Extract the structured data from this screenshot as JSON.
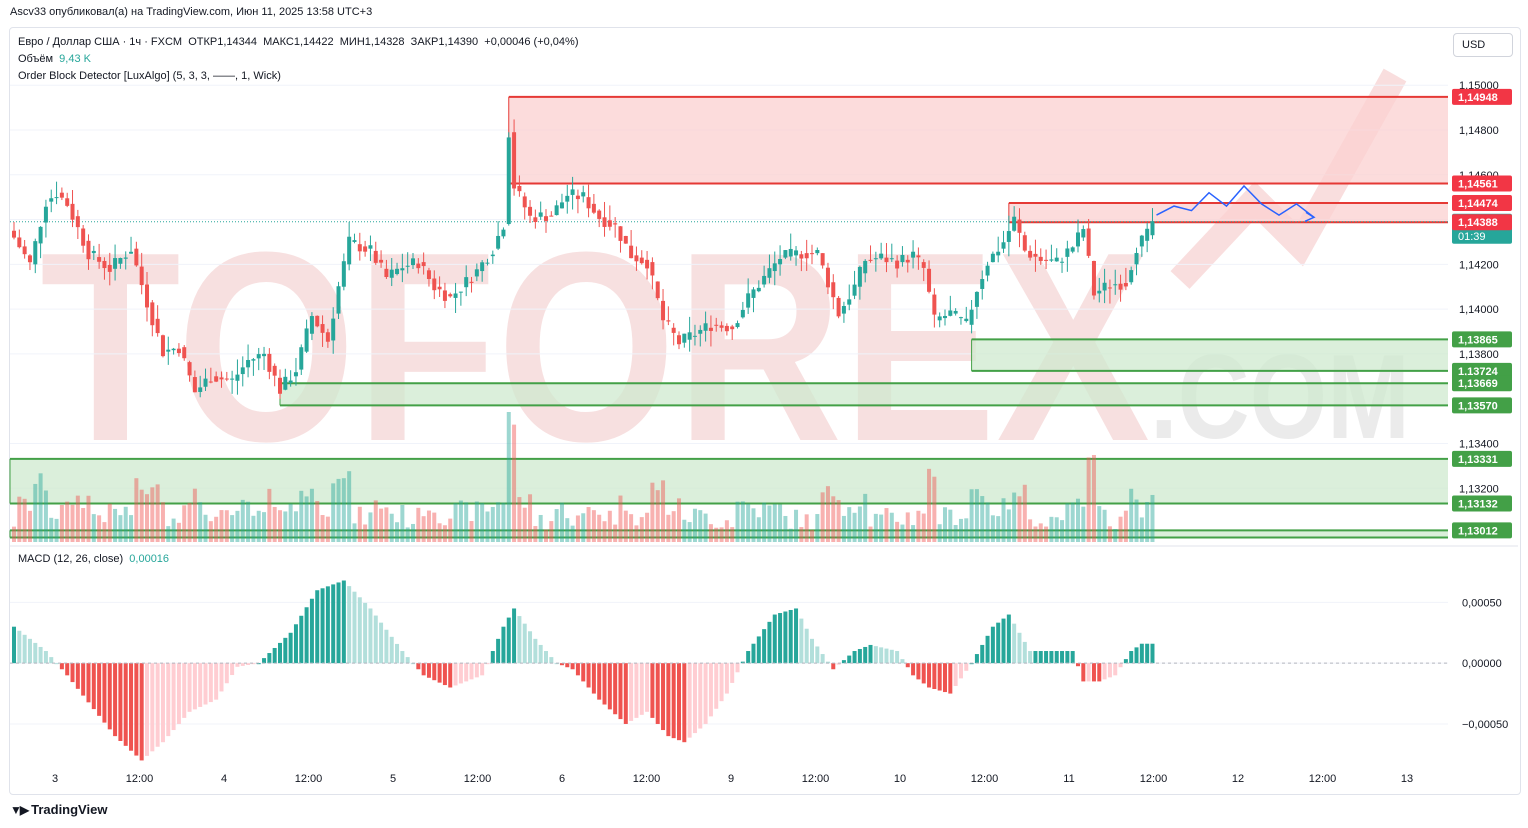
{
  "header": {
    "published_by": "Ascv33 опубликовал(а) на TradingView.com, Июн 11, 2025 13:58 UTC+3"
  },
  "legend": {
    "symbol_line": "Евро / Доллар США · 1ч · FXCM",
    "open": "ОТКР1,14344",
    "high": "МАКС1,14422",
    "low": "МИН1,14328",
    "close": "ЗАКР1,14390",
    "change": "+0,00046 (+0,04%)",
    "volume_label": "Объём",
    "volume_value": "9,43 K",
    "indicator": "Order Block Detector [LuxAlgo] (5, 3, 3, ——, 1, Wick)",
    "macd_label": "MACD (12, 26, close)",
    "macd_value": "0,00016"
  },
  "currency_button": "USD",
  "watermark": {
    "brand": "TOFOREX",
    "suffix": ".COM"
  },
  "footer": {
    "brand": "TradingView"
  },
  "colors": {
    "up": "#26a69a",
    "down": "#ef5350",
    "bear_zone_fill": "#fbd0d0",
    "bull_zone_fill": "#cfe9cf",
    "zone_green_line": "#43a047",
    "zone_red_line": "#e53935",
    "projection": "#2962ff"
  },
  "chart_data": {
    "type": "candlestick",
    "symbol": "EURUSD",
    "timeframe": "1h",
    "x_tick_labels": [
      "3",
      "12:00",
      "4",
      "12:00",
      "5",
      "12:00",
      "6",
      "12:00",
      "9",
      "12:00",
      "10",
      "12:00",
      "11",
      "12:00",
      "12",
      "12:00",
      "13"
    ],
    "price_axis": {
      "range": [
        1.1296,
        1.1505
      ],
      "ticks": [
        "1,15000",
        "1,14800",
        "1,14600",
        "1,14400",
        "1,14200",
        "1,14000",
        "1,13800",
        "1,13400",
        "1,13200"
      ],
      "tick_values": [
        1.15,
        1.148,
        1.146,
        1.144,
        1.142,
        1.14,
        1.138,
        1.134,
        1.132
      ]
    },
    "price_markers": [
      {
        "label": "1,14948",
        "value": 1.14948,
        "kind": "red"
      },
      {
        "label": "1,14561",
        "value": 1.14561,
        "kind": "red"
      },
      {
        "label": "1,14474",
        "value": 1.14474,
        "kind": "red"
      },
      {
        "label": "1,14390",
        "value": 1.1439,
        "kind": "current",
        "sub": "01:39"
      },
      {
        "label": "1,14388",
        "value": 1.14388,
        "kind": "red"
      },
      {
        "label": "1,13865",
        "value": 1.13865,
        "kind": "green"
      },
      {
        "label": "1,13724",
        "value": 1.13724,
        "kind": "green"
      },
      {
        "label": "1,13669",
        "value": 1.13669,
        "kind": "green"
      },
      {
        "label": "1,13570",
        "value": 1.1357,
        "kind": "green"
      },
      {
        "label": "1,13331",
        "value": 1.13331,
        "kind": "green"
      },
      {
        "label": "1,13132",
        "value": 1.13132,
        "kind": "green"
      },
      {
        "label": "1,13012",
        "value": 1.13012,
        "kind": "green"
      }
    ],
    "zones": [
      {
        "kind": "bearish",
        "from_bar": 93,
        "top": 1.14948,
        "bottom": 1.14561
      },
      {
        "kind": "bearish",
        "from_bar": 187,
        "top": 1.14474,
        "bottom": 1.14388
      },
      {
        "kind": "bullish",
        "from_bar": 180,
        "top": 1.13865,
        "bottom": 1.13724
      },
      {
        "kind": "bullish",
        "from_bar": 50,
        "top": 1.13669,
        "bottom": 1.1357
      },
      {
        "kind": "bullish",
        "from_bar": 0,
        "top": 1.13331,
        "bottom": 1.13132
      },
      {
        "kind": "bullish",
        "from_bar": 0,
        "top": 1.13012,
        "bottom": 1.1298
      }
    ],
    "current_price": 1.1439,
    "projection": [
      1.1442,
      1.1446,
      1.1444,
      1.1452,
      1.1446,
      1.1455,
      1.1447,
      1.1442,
      1.1447,
      1.1441
    ],
    "anchors": [
      [
        0,
        1.1432
      ],
      [
        3,
        1.142
      ],
      [
        6,
        1.1448
      ],
      [
        8,
        1.1452
      ],
      [
        10,
        1.1447
      ],
      [
        14,
        1.1425
      ],
      [
        18,
        1.1418
      ],
      [
        22,
        1.1427
      ],
      [
        25,
        1.1403
      ],
      [
        28,
        1.1381
      ],
      [
        31,
        1.1383
      ],
      [
        34,
        1.1363
      ],
      [
        37,
        1.137
      ],
      [
        41,
        1.1368
      ],
      [
        44,
        1.1377
      ],
      [
        47,
        1.138
      ],
      [
        50,
        1.1364
      ],
      [
        53,
        1.1373
      ],
      [
        56,
        1.1397
      ],
      [
        59,
        1.1386
      ],
      [
        61,
        1.141
      ],
      [
        63,
        1.143
      ],
      [
        67,
        1.1426
      ],
      [
        70,
        1.1414
      ],
      [
        73,
        1.1419
      ],
      [
        76,
        1.1421
      ],
      [
        79,
        1.141
      ],
      [
        82,
        1.1405
      ],
      [
        87,
        1.1417
      ],
      [
        90,
        1.1427
      ],
      [
        92,
        1.1438
      ],
      [
        93,
        1.1479
      ],
      [
        94,
        1.1455
      ],
      [
        97,
        1.1441
      ],
      [
        101,
        1.1442
      ],
      [
        104,
        1.1451
      ],
      [
        107,
        1.145
      ],
      [
        110,
        1.1441
      ],
      [
        113,
        1.1437
      ],
      [
        116,
        1.1424
      ],
      [
        119,
        1.1421
      ],
      [
        122,
        1.1395
      ],
      [
        125,
        1.1385
      ],
      [
        128,
        1.1389
      ],
      [
        131,
        1.1393
      ],
      [
        135,
        1.1392
      ],
      [
        138,
        1.1405
      ],
      [
        141,
        1.1414
      ],
      [
        144,
        1.1423
      ],
      [
        148,
        1.1425
      ],
      [
        151,
        1.1425
      ],
      [
        153,
        1.1412
      ],
      [
        155,
        1.1398
      ],
      [
        158,
        1.141
      ],
      [
        160,
        1.1422
      ],
      [
        163,
        1.1423
      ],
      [
        166,
        1.1421
      ],
      [
        169,
        1.1424
      ],
      [
        171,
        1.1418
      ],
      [
        173,
        1.1395
      ],
      [
        176,
        1.1398
      ],
      [
        179,
        1.1393
      ],
      [
        181,
        1.1409
      ],
      [
        183,
        1.1421
      ],
      [
        186,
        1.143
      ],
      [
        188,
        1.144
      ],
      [
        190,
        1.1426
      ],
      [
        193,
        1.1422
      ],
      [
        196,
        1.1421
      ],
      [
        199,
        1.1428
      ],
      [
        201,
        1.1436
      ],
      [
        203,
        1.1407
      ],
      [
        206,
        1.1411
      ],
      [
        209,
        1.1412
      ],
      [
        211,
        1.1428
      ],
      [
        213,
        1.1433
      ],
      [
        214,
        1.1439
      ]
    ],
    "macd": {
      "ticks": [
        "0,00050",
        "0,00000",
        "−0,00050"
      ],
      "tick_values": [
        0.0005,
        0.0,
        -0.0005
      ],
      "range": [
        -0.00078,
        0.00075
      ],
      "anchors": [
        [
          0,
          0.0003
        ],
        [
          6,
          0.0001
        ],
        [
          10,
          -0.0001
        ],
        [
          19,
          -0.0006
        ],
        [
          24,
          -0.0008
        ],
        [
          28,
          -0.00065
        ],
        [
          33,
          -0.0004
        ],
        [
          38,
          -0.0003
        ],
        [
          42,
          -3e-05
        ],
        [
          46,
          0.0
        ],
        [
          52,
          0.00025
        ],
        [
          57,
          0.0006
        ],
        [
          62,
          0.00068
        ],
        [
          67,
          0.00045
        ],
        [
          73,
          0.0001
        ],
        [
          77,
          -0.0001
        ],
        [
          82,
          -0.0002
        ],
        [
          88,
          -0.0001
        ],
        [
          92,
          0.0003
        ],
        [
          94,
          0.00045
        ],
        [
          98,
          0.0002
        ],
        [
          102,
          0.0
        ],
        [
          105,
          -5e-05
        ],
        [
          110,
          -0.0003
        ],
        [
          115,
          -0.0005
        ],
        [
          119,
          -0.0004
        ],
        [
          123,
          -0.0006
        ],
        [
          126,
          -0.00065
        ],
        [
          130,
          -0.0005
        ],
        [
          134,
          -0.00025
        ],
        [
          138,
          0.0001
        ],
        [
          143,
          0.0004
        ],
        [
          147,
          0.00045
        ],
        [
          150,
          0.0002
        ],
        [
          154,
          -5e-05
        ],
        [
          158,
          0.0001
        ],
        [
          161,
          0.00015
        ],
        [
          166,
          0.0001
        ],
        [
          169,
          -0.0001
        ],
        [
          172,
          -0.0002
        ],
        [
          176,
          -0.00025
        ],
        [
          180,
          0.0
        ],
        [
          184,
          0.0003
        ],
        [
          187,
          0.0004
        ],
        [
          191,
          0.0001
        ],
        [
          196,
          0.0001
        ],
        [
          199,
          0.0001
        ],
        [
          201,
          -0.00015
        ],
        [
          204,
          -0.00015
        ],
        [
          207,
          -0.0001
        ],
        [
          210,
          0.0001
        ],
        [
          212,
          0.00016
        ]
      ]
    }
  }
}
